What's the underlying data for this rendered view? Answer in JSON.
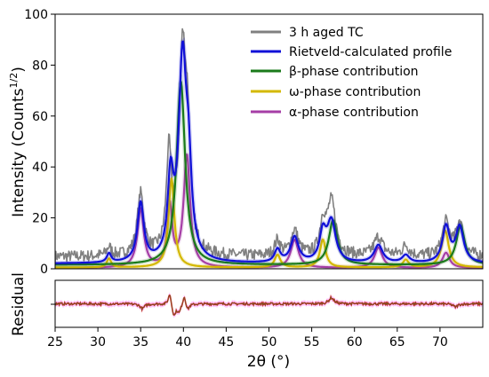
{
  "chart_data": [
    {
      "type": "line",
      "ylabel": "Intensity (Counts",
      "ylabel_sup": "1/2",
      "ylabel_close": ")",
      "xlim": [
        25,
        75
      ],
      "ylim": [
        0,
        100
      ],
      "yticks": [
        "0",
        "20",
        "40",
        "60",
        "80",
        "100"
      ],
      "ytick_values": [
        0,
        20,
        40,
        60,
        80,
        100
      ],
      "legend_position": "top-right",
      "series": [
        {
          "name": "3 h aged TC",
          "color": "#808080",
          "kind": "observed",
          "background": 4.5,
          "peaks": [
            [
              31.3,
              3.5,
              0.3
            ],
            [
              35.0,
              24.0,
              0.45
            ],
            [
              38.3,
              38.0,
              0.35
            ],
            [
              39.9,
              78.0,
              0.5
            ],
            [
              40.5,
              35.0,
              0.35
            ],
            [
              51.0,
              6.0,
              0.4
            ],
            [
              53.0,
              10.0,
              0.5
            ],
            [
              56.3,
              12.0,
              0.4
            ],
            [
              57.3,
              21.0,
              0.6
            ],
            [
              62.8,
              7.5,
              0.6
            ],
            [
              66.0,
              4.0,
              0.5
            ],
            [
              70.7,
              13.0,
              0.5
            ],
            [
              72.3,
              13.5,
              0.5
            ]
          ]
        },
        {
          "name": "Rietveld-calculated profile",
          "color": "#1010d8",
          "kind": "fit",
          "background": 2.0,
          "peaks": [
            [
              31.3,
              3.5,
              0.3
            ],
            [
              35.0,
              23.0,
              0.45
            ],
            [
              38.5,
              30.0,
              0.4
            ],
            [
              39.9,
              78.0,
              0.55
            ],
            [
              40.6,
              28.0,
              0.4
            ],
            [
              51.0,
              5.0,
              0.4
            ],
            [
              53.0,
              10.0,
              0.55
            ],
            [
              56.3,
              11.0,
              0.45
            ],
            [
              57.3,
              16.0,
              0.6
            ],
            [
              62.8,
              7.0,
              0.6
            ],
            [
              66.0,
              3.0,
              0.5
            ],
            [
              70.7,
              14.0,
              0.5
            ],
            [
              72.3,
              14.0,
              0.55
            ]
          ]
        },
        {
          "name": "β-phase contribution",
          "color": "#1a7a1a",
          "kind": "phase",
          "background": 1.5,
          "peaks": [
            [
              39.7,
              72.0,
              0.6
            ],
            [
              57.5,
              17.5,
              0.6
            ],
            [
              72.4,
              15.5,
              0.6
            ]
          ]
        },
        {
          "name": "ω-phase contribution",
          "color": "#d4b800",
          "kind": "phase",
          "background": 0.5,
          "peaks": [
            [
              31.3,
              3.5,
              0.3
            ],
            [
              38.6,
              35.0,
              0.4
            ],
            [
              51.0,
              5.0,
              0.4
            ],
            [
              56.3,
              11.0,
              0.4
            ],
            [
              66.0,
              3.0,
              0.4
            ],
            [
              70.6,
              14.5,
              0.5
            ]
          ]
        },
        {
          "name": "α-phase contribution",
          "color": "#a63ea6",
          "kind": "phase",
          "background": 0.3,
          "peaks": [
            [
              35.0,
              23.0,
              0.45
            ],
            [
              38.4,
              24.0,
              0.35
            ],
            [
              40.4,
              44.0,
              0.45
            ],
            [
              53.0,
              11.0,
              0.55
            ],
            [
              62.8,
              8.0,
              0.55
            ],
            [
              70.7,
              6.0,
              0.5
            ]
          ]
        }
      ]
    },
    {
      "type": "line",
      "xlabel": "2θ (°)",
      "ylabel": "Residual",
      "xlim": [
        25,
        75
      ],
      "xticks": [
        "25",
        "30",
        "35",
        "40",
        "45",
        "50",
        "55",
        "60",
        "65",
        "70"
      ],
      "xtick_values": [
        25,
        30,
        35,
        40,
        45,
        50,
        55,
        60,
        65,
        70
      ],
      "series": [
        {
          "color": "#c81e1e",
          "band_color": "#ff80ff",
          "features": [
            [
              35.2,
              -1.2,
              0.3
            ],
            [
              38.4,
              3.0,
              0.2
            ],
            [
              38.9,
              -3.0,
              0.25
            ],
            [
              39.5,
              -2.0,
              0.25
            ],
            [
              40.1,
              2.5,
              0.2
            ],
            [
              40.5,
              -1.5,
              0.25
            ],
            [
              57.3,
              1.5,
              0.35
            ],
            [
              71.8,
              -0.8,
              0.3
            ]
          ]
        }
      ]
    }
  ]
}
